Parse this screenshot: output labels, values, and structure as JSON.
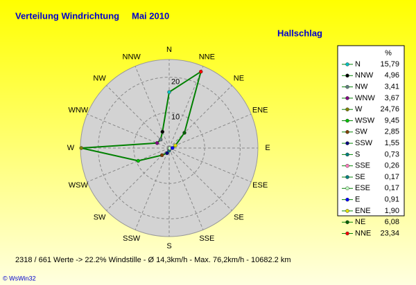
{
  "chart_data": {
    "type": "radar",
    "title": "Verteilung Windrichtung",
    "title_period": "Mai 2010",
    "subtitle": "Hallschlag",
    "categories": [
      "N",
      "NNW",
      "NW",
      "WNW",
      "W",
      "WSW",
      "SW",
      "SSW",
      "S",
      "SSE",
      "SE",
      "ESE",
      "E",
      "ENE",
      "NE",
      "NNE"
    ],
    "series": [
      {
        "color": "#008000",
        "values": [
          15.79,
          4.96,
          3.41,
          3.67,
          24.76,
          9.45,
          2.85,
          1.55,
          0.73,
          0.26,
          0.17,
          0.17,
          0.91,
          1.9,
          6.08,
          23.34
        ],
        "value_labels": [
          "15,79",
          "4,96",
          "3,41",
          "3,67",
          "24,76",
          "9,45",
          "2,85",
          "1,55",
          "0,73",
          "0,26",
          "0,17",
          "0,17",
          "0,91",
          "1,90",
          "6,08",
          "23,34"
        ],
        "marker_colors": [
          "#00c0c0",
          "#000000",
          "#608080",
          "#800080",
          "#808000",
          "#00c000",
          "#804000",
          "#000080",
          "#008080",
          "#ff80c0",
          "#008080",
          "#c0ffc0",
          "#0000ff",
          "#e0e000",
          "#006000",
          "#ff0000"
        ]
      }
    ],
    "legend_header": "%",
    "rlim": [
      0,
      25
    ],
    "rticks": [
      10,
      20
    ],
    "grid": true,
    "footer": "2318 / 661 Werte  -> 22.2% Windstille   -   Ø 14,3km/h  -  Max. 76,2km/h   -   10682.2 km",
    "credit": "© WsWin32"
  }
}
